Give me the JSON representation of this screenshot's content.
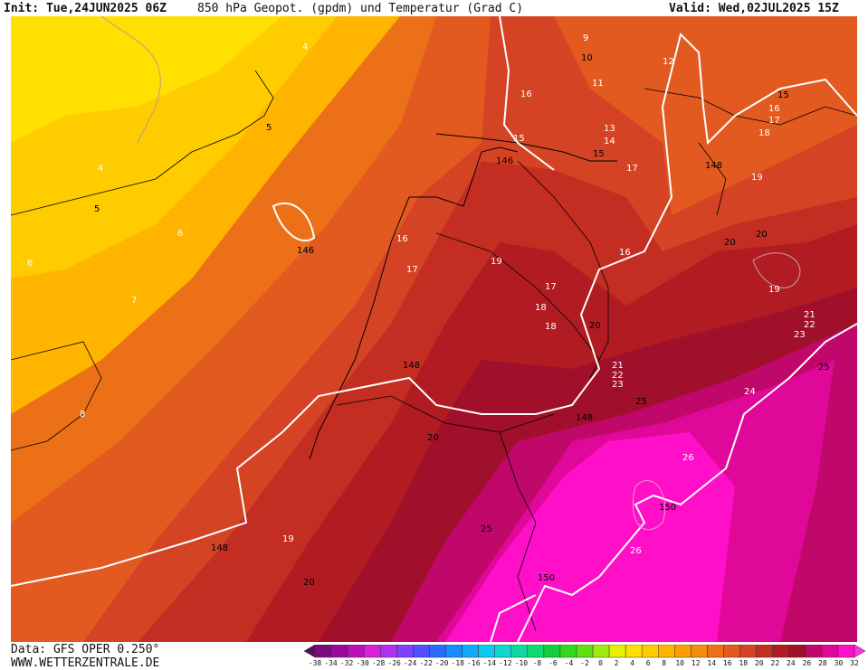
{
  "header": {
    "init": "Init: Tue,24JUN2025 06Z",
    "title": "850 hPa Geopot. (gpdm) und Temperatur (Grad C)",
    "valid": "Valid: Wed,02JUL2025 15Z"
  },
  "footer": {
    "data_source": "Data: GFS OPER 0.250°",
    "website": "WWW.WETTERZENTRALE.DE"
  },
  "colorbar": {
    "ticks": [
      "-38",
      "-34",
      "-32",
      "-30",
      "-28",
      "-26",
      "-24",
      "-22",
      "-20",
      "-18",
      "-16",
      "-14",
      "-12",
      "-10",
      "-8",
      "-6",
      "-4",
      "-2",
      "0",
      "2",
      "4",
      "6",
      "8",
      "10",
      "12",
      "14",
      "16",
      "18",
      "20",
      "22",
      "24",
      "26",
      "28",
      "30",
      "32"
    ],
    "colors": [
      "#5a0a5a",
      "#7a0a7a",
      "#9a0a9a",
      "#ba10ba",
      "#d820d8",
      "#b030f0",
      "#8040ff",
      "#5050ff",
      "#2a6aff",
      "#1a8cff",
      "#12a8ff",
      "#10c8f0",
      "#10d8d0",
      "#10d8a0",
      "#10d870",
      "#10d040",
      "#30d820",
      "#60e010",
      "#a0ec10",
      "#e8f000",
      "#ffe000",
      "#ffcc00",
      "#ffb400",
      "#ff9c00",
      "#f48a10",
      "#ec7018",
      "#e25a20",
      "#d44424",
      "#c42e22",
      "#b01c22",
      "#a0102a",
      "#c0086a",
      "#e00898",
      "#ff10c8",
      "#ff30e0"
    ]
  },
  "map_labels": {
    "geopotential": [
      "146",
      "146",
      "148",
      "148",
      "148",
      "148",
      "150",
      "150"
    ],
    "temperature": [
      "4",
      "4",
      "5",
      "5",
      "6",
      "6",
      "7",
      "8",
      "9",
      "10",
      "11",
      "12",
      "13",
      "14",
      "15",
      "15",
      "15",
      "16",
      "16",
      "16",
      "16",
      "17",
      "17",
      "17",
      "17",
      "18",
      "18",
      "18",
      "19",
      "19",
      "19",
      "19",
      "20",
      "20",
      "20",
      "20",
      "20",
      "21",
      "21",
      "22",
      "22",
      "23",
      "23",
      "24",
      "25",
      "25",
      "25",
      "26",
      "26"
    ]
  }
}
